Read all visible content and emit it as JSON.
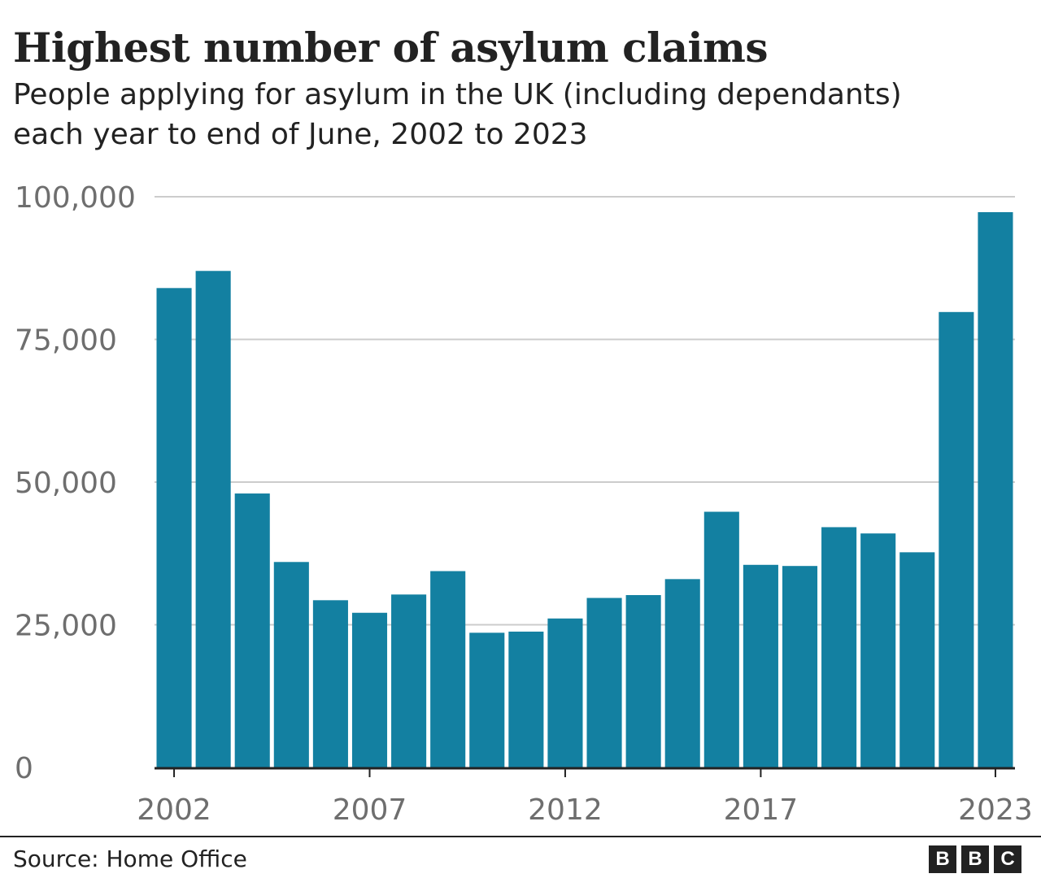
{
  "chart_data": {
    "type": "bar",
    "title": "Highest number of asylum claims",
    "subtitle_lines": [
      "People applying for asylum in the UK (including dependants)",
      "each year to end of June, 2002 to 2023"
    ],
    "x": [
      2002,
      2003,
      2004,
      2005,
      2006,
      2007,
      2008,
      2009,
      2010,
      2011,
      2012,
      2013,
      2014,
      2015,
      2016,
      2017,
      2018,
      2019,
      2020,
      2021,
      2022,
      2023
    ],
    "values": [
      84000,
      87000,
      48000,
      36000,
      29300,
      27100,
      30300,
      34400,
      23600,
      23800,
      26100,
      29700,
      30200,
      33000,
      44800,
      35500,
      35300,
      42100,
      41000,
      37700,
      79800,
      97300
    ],
    "x_tick_labels": [
      "2002",
      "2007",
      "2012",
      "2017",
      "2023"
    ],
    "x_tick_values": [
      2002,
      2007,
      2012,
      2017,
      2023
    ],
    "y_ticks": [
      0,
      25000,
      50000,
      75000,
      100000
    ],
    "y_tick_labels": [
      "0",
      "25,000",
      "50,000",
      "75,000",
      "100,000"
    ],
    "ylim": [
      0,
      100000
    ],
    "grid": true,
    "bar_color": "#1380a1"
  },
  "source": "Source: Home Office",
  "logo": [
    "B",
    "B",
    "C"
  ]
}
